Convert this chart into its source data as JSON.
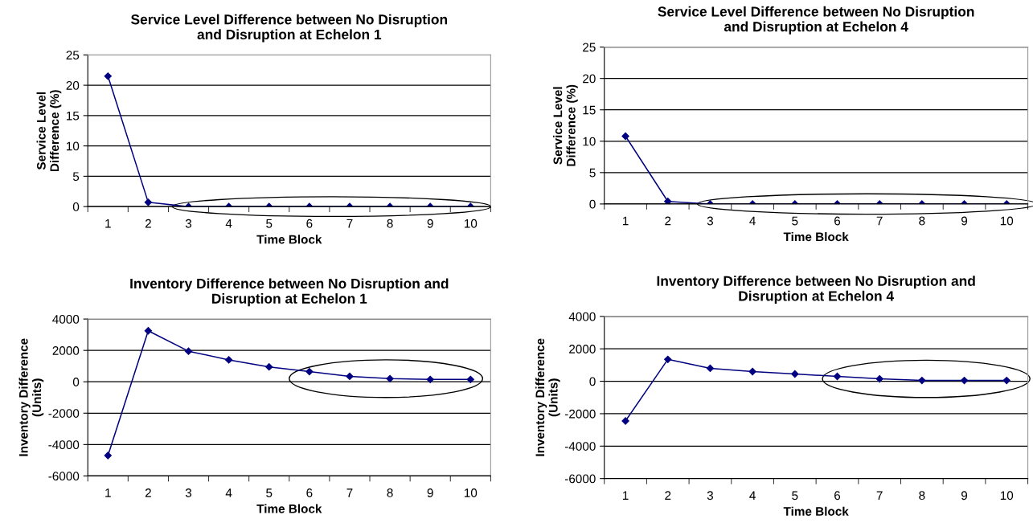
{
  "chart_data": [
    {
      "type": "line",
      "title": "Service Level Difference between No Disruption\nand Disruption at Echelon 1",
      "xlabel": "Time Block",
      "ylabel": "Service Level\nDifference (%)",
      "categories": [
        "1",
        "2",
        "3",
        "4",
        "5",
        "6",
        "7",
        "8",
        "9",
        "10"
      ],
      "series": [
        {
          "color": "#000080",
          "values": [
            21.5,
            0.7,
            0,
            0,
            0,
            0,
            0,
            0,
            0,
            0
          ]
        }
      ],
      "ylim": [
        0,
        25
      ],
      "yticks": [
        0,
        5,
        10,
        15,
        20,
        25
      ],
      "grid": "y",
      "marker": "diamond",
      "line_style": "solid"
    },
    {
      "type": "line",
      "title": "Service Level Difference between No Disruption\nand Disruption at Echelon 4",
      "xlabel": "Time Block",
      "ylabel": "Service Level\nDifference (%)",
      "categories": [
        "1",
        "2",
        "3",
        "4",
        "5",
        "6",
        "7",
        "8",
        "9",
        "10"
      ],
      "series": [
        {
          "color": "#000080",
          "values": [
            10.8,
            0.4,
            0,
            0,
            0,
            0,
            0,
            0,
            0,
            0
          ]
        }
      ],
      "ylim": [
        0,
        25
      ],
      "yticks": [
        0,
        5,
        10,
        15,
        20,
        25
      ],
      "grid": "y",
      "marker": "diamond",
      "line_style": "solid"
    },
    {
      "type": "line",
      "title": "Inventory Difference between No Disruption and\nDisruption at Echelon 1",
      "xlabel": "Time Block",
      "ylabel": "Inventory Difference\n(Units)",
      "categories": [
        "1",
        "2",
        "3",
        "4",
        "5",
        "6",
        "7",
        "8",
        "9",
        "10"
      ],
      "series": [
        {
          "color": "#000080",
          "values": [
            -4700,
            3250,
            1950,
            1400,
            950,
            650,
            350,
            200,
            150,
            150
          ]
        }
      ],
      "ylim": [
        -6000,
        4000
      ],
      "yticks": [
        -6000,
        -4000,
        -2000,
        0,
        2000,
        4000
      ],
      "grid": "y",
      "marker": "diamond",
      "line_style": "solid"
    },
    {
      "type": "line",
      "title": "Inventory Difference between No Disruption and\nDisruption at Echelon 4",
      "xlabel": "Time Block",
      "ylabel": "Inventory Difference\n(Units)",
      "categories": [
        "1",
        "2",
        "3",
        "4",
        "5",
        "6",
        "7",
        "8",
        "9",
        "10"
      ],
      "series": [
        {
          "color": "#000080",
          "values": [
            -2450,
            1350,
            800,
            600,
            450,
            300,
            150,
            50,
            50,
            50
          ]
        }
      ],
      "ylim": [
        -6000,
        4000
      ],
      "yticks": [
        -6000,
        -4000,
        -2000,
        0,
        2000,
        4000
      ],
      "grid": "y",
      "marker": "diamond",
      "line_style": "solid"
    }
  ]
}
